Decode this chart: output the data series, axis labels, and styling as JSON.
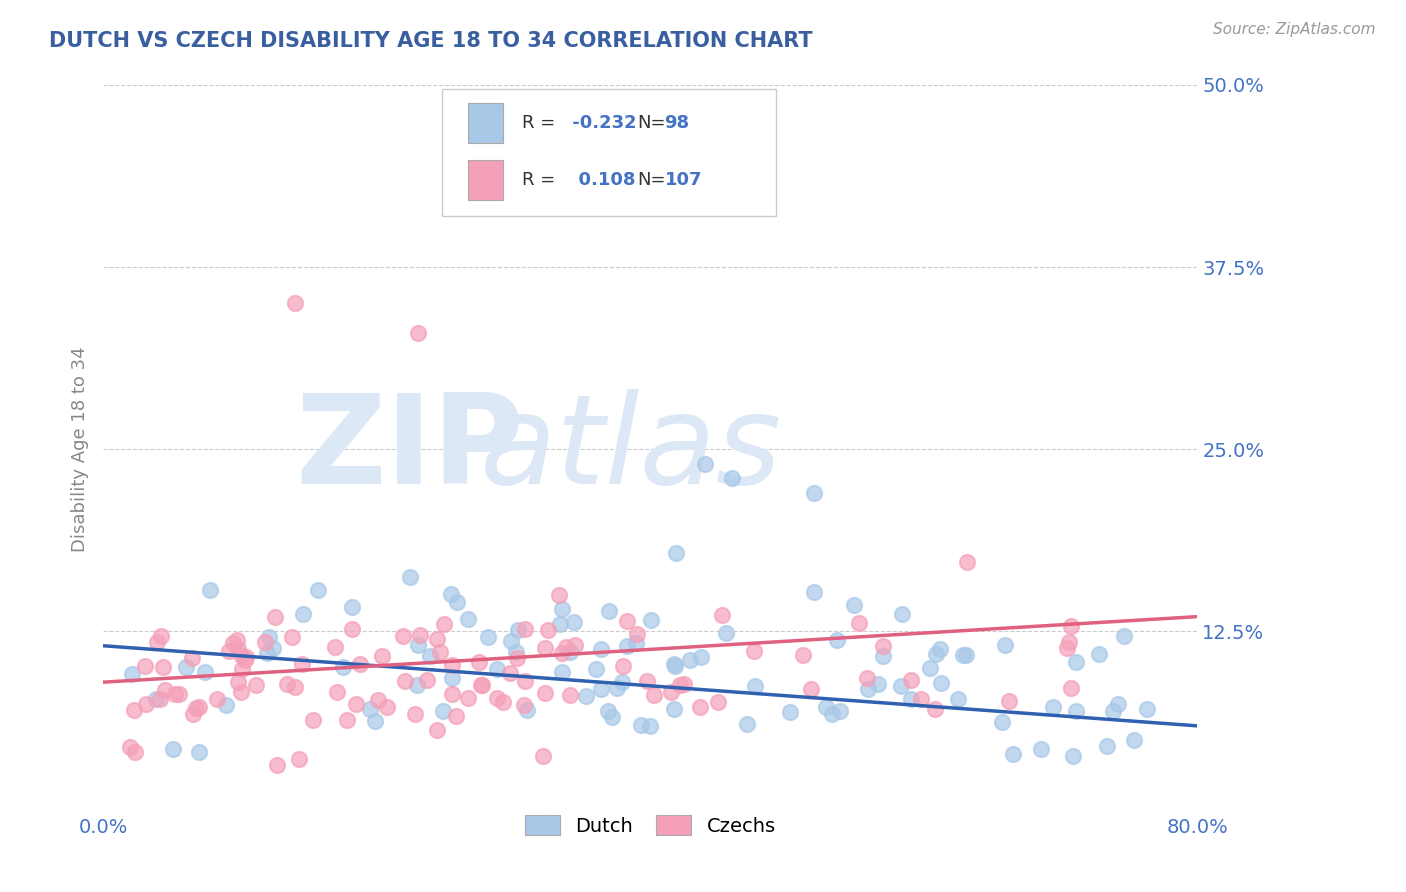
{
  "title": "DUTCH VS CZECH DISABILITY AGE 18 TO 34 CORRELATION CHART",
  "source_text": "Source: ZipAtlas.com",
  "ylabel": "Disability Age 18 to 34",
  "xlim": [
    0.0,
    0.8
  ],
  "ylim": [
    0.0,
    0.5
  ],
  "xticks": [
    0.0,
    0.8
  ],
  "xticklabels": [
    "0.0%",
    "80.0%"
  ],
  "yticks": [
    0.0,
    0.125,
    0.25,
    0.375,
    0.5
  ],
  "yticklabels": [
    "",
    "12.5%",
    "25.0%",
    "37.5%",
    "50.0%"
  ],
  "grid_color": "#cccccc",
  "background_color": "#ffffff",
  "title_color": "#3a5fa0",
  "axis_label_color": "#888888",
  "tick_label_color": "#4472c4",
  "watermark_zip": "ZIP",
  "watermark_atlas": "atlas",
  "watermark_color": "#dce8f5",
  "legend_dutch_label": "Dutch",
  "legend_czech_label": "Czechs",
  "dutch_R": -0.232,
  "dutch_N": 98,
  "czech_R": 0.108,
  "czech_N": 107,
  "dutch_scatter_color": "#a8c8e8",
  "czech_scatter_color": "#f4a0b8",
  "dutch_line_color": "#3060b0",
  "czech_line_color": "#e06080",
  "legend_R_color": "#4472c4",
  "legend_N_color": "#4472c4",
  "legend_text_color": "#333333",
  "dutch_line_start_y": 0.115,
  "dutch_line_end_y": 0.06,
  "czech_line_start_y": 0.09,
  "czech_line_end_y": 0.135
}
